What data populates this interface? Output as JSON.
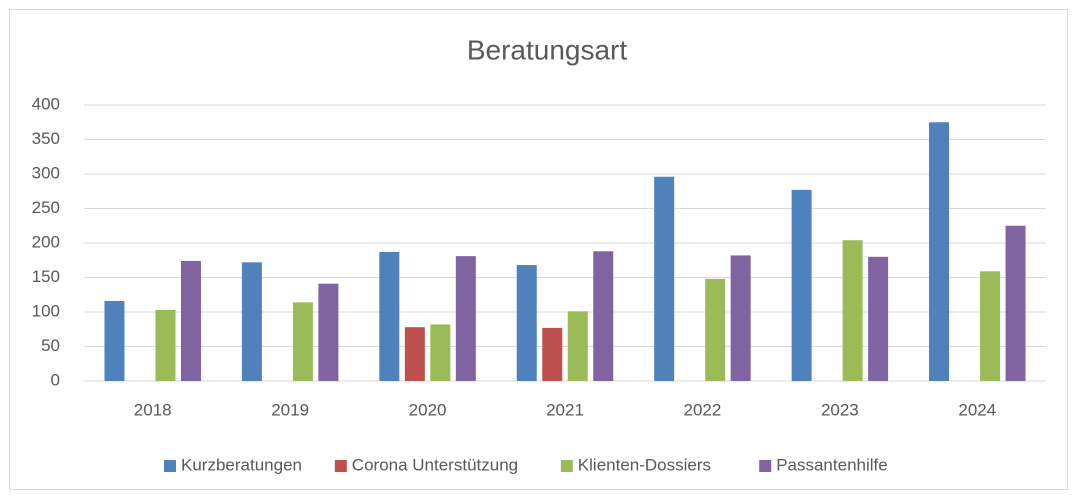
{
  "chart_data": {
    "type": "bar",
    "title": "Beratungsart",
    "categories": [
      "2018",
      "2019",
      "2020",
      "2021",
      "2022",
      "2023",
      "2024"
    ],
    "series": [
      {
        "name": "Kurzberatungen",
        "color": "#4f81bd",
        "values": [
          116,
          172,
          187,
          168,
          296,
          277,
          375
        ]
      },
      {
        "name": "Corona Unterstützung",
        "color": "#c0504d",
        "values": [
          null,
          null,
          78,
          77,
          null,
          null,
          null
        ]
      },
      {
        "name": "Klienten-Dossiers",
        "color": "#9bbb59",
        "values": [
          103,
          114,
          82,
          101,
          148,
          204,
          159
        ]
      },
      {
        "name": "Passantenhilfe",
        "color": "#8064a2",
        "values": [
          174,
          141,
          181,
          188,
          182,
          180,
          225
        ]
      }
    ],
    "ylim": [
      0,
      400
    ],
    "yticks": [
      0,
      50,
      100,
      150,
      200,
      250,
      300,
      350,
      400
    ],
    "grid": true,
    "legend": "bottom"
  }
}
